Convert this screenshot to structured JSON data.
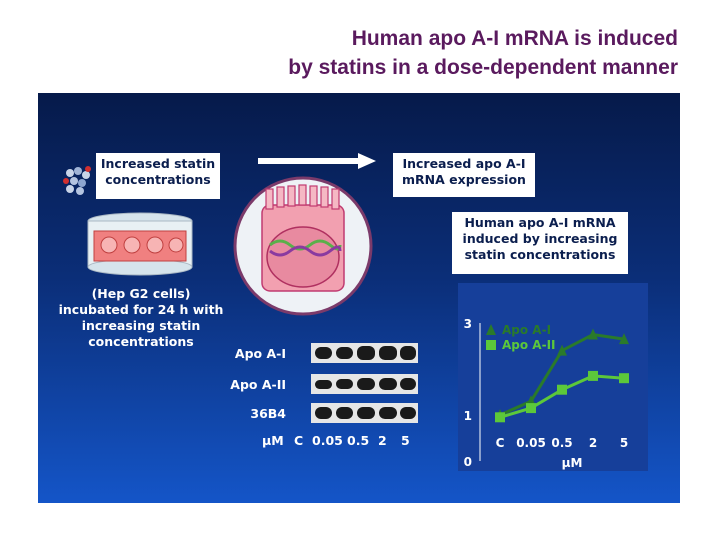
{
  "title": {
    "line1": "Human apo A-I mRNA is induced",
    "line2": "by statins in a dose-dependent manner"
  },
  "boxes": {
    "statin_box": "Increased statin concentrations",
    "mrna_box": "Increased apo A-I mRNA expression",
    "induced_box": "Human apo A-I mRNA induced by increasing statin concentrations"
  },
  "cells_text": "(Hep G2 cells) incubated for 24 h with increasing statin concentrations",
  "blot": {
    "rows": [
      "Apo A-I",
      "Apo A-II",
      "36B4"
    ],
    "unit": "μM",
    "lanes": [
      "C",
      "0.05",
      "0.5",
      "2",
      "5"
    ]
  },
  "chart_data": {
    "type": "line",
    "categories": [
      "C",
      "0.05",
      "0.5",
      "2",
      "5"
    ],
    "xlabel": "μM",
    "ylim": [
      0,
      3
    ],
    "yticks": [
      "0",
      "1",
      "3"
    ],
    "series": [
      {
        "name": "Apo A-I",
        "values": [
          1.0,
          1.3,
          2.4,
          2.75,
          2.65
        ],
        "color": "#2a7a2a",
        "marker": "triangle"
      },
      {
        "name": "Apo A-II",
        "values": [
          0.95,
          1.15,
          1.55,
          1.85,
          1.8
        ],
        "color": "#5cc83a",
        "marker": "square"
      }
    ],
    "legend_position": "top-left"
  },
  "colors": {
    "title": "#5a1a5e",
    "panel_top": "#061a4a",
    "panel_bottom": "#1455c8",
    "chart_bg": "#163f9a"
  }
}
